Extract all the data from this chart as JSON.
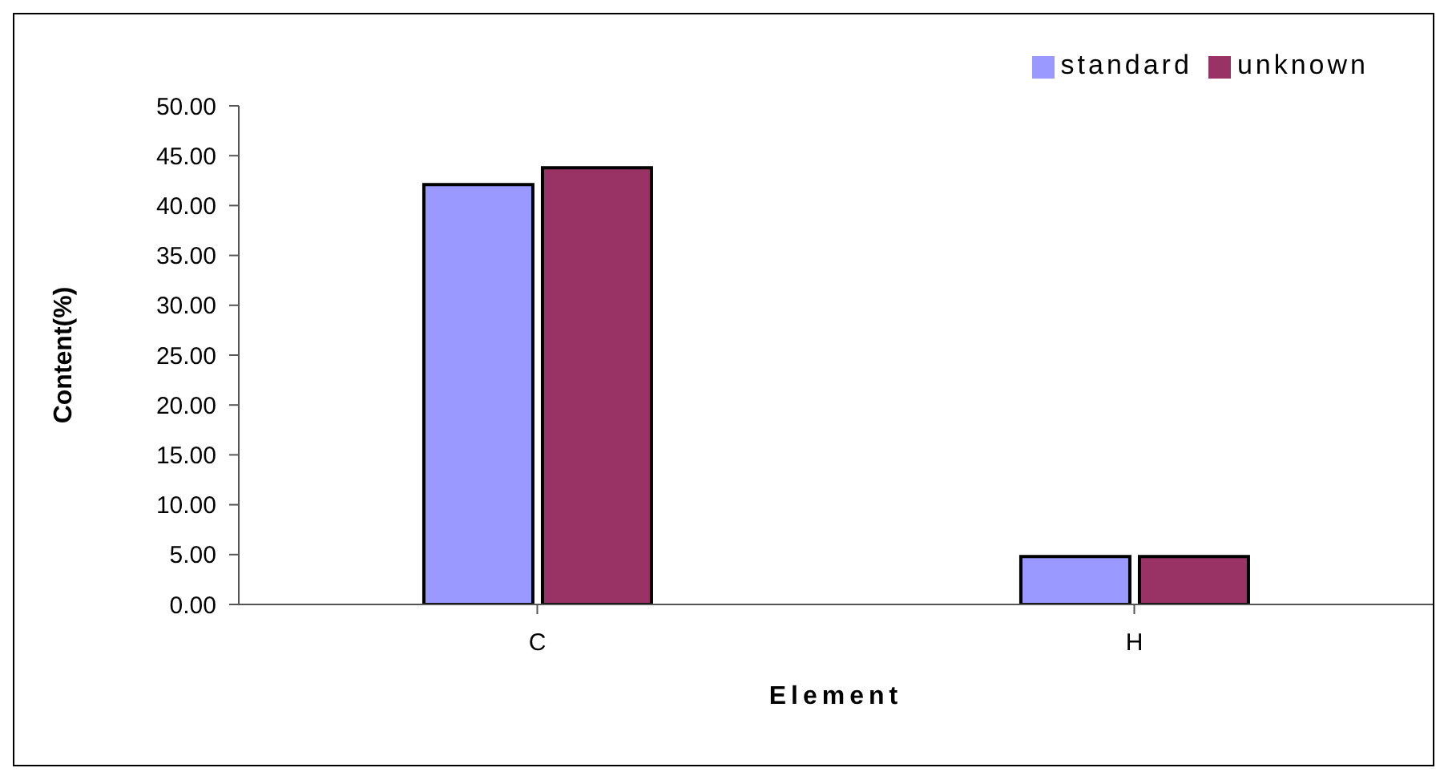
{
  "chart_data": {
    "type": "bar",
    "xlabel": "Element",
    "ylabel": "Content(%)",
    "categories": [
      "C",
      "H"
    ],
    "series": [
      {
        "name": "standard",
        "color": "#9999ff",
        "values": [
          42.1,
          4.8
        ]
      },
      {
        "name": "unknown",
        "color": "#993366",
        "values": [
          43.8,
          4.8
        ]
      }
    ],
    "ylim": [
      0,
      50
    ],
    "yticks": [
      {
        "value": 0,
        "label": "0.00"
      },
      {
        "value": 5,
        "label": "5.00"
      },
      {
        "value": 10,
        "label": "10.00"
      },
      {
        "value": 15,
        "label": "15.00"
      },
      {
        "value": 20,
        "label": "20.00"
      },
      {
        "value": 25,
        "label": "25.00"
      },
      {
        "value": 30,
        "label": "30.00"
      },
      {
        "value": 35,
        "label": "35.00"
      },
      {
        "value": 40,
        "label": "40.00"
      },
      {
        "value": 45,
        "label": "45.00"
      },
      {
        "value": 50,
        "label": "50.00"
      }
    ],
    "grid": false,
    "legend": "top right"
  }
}
